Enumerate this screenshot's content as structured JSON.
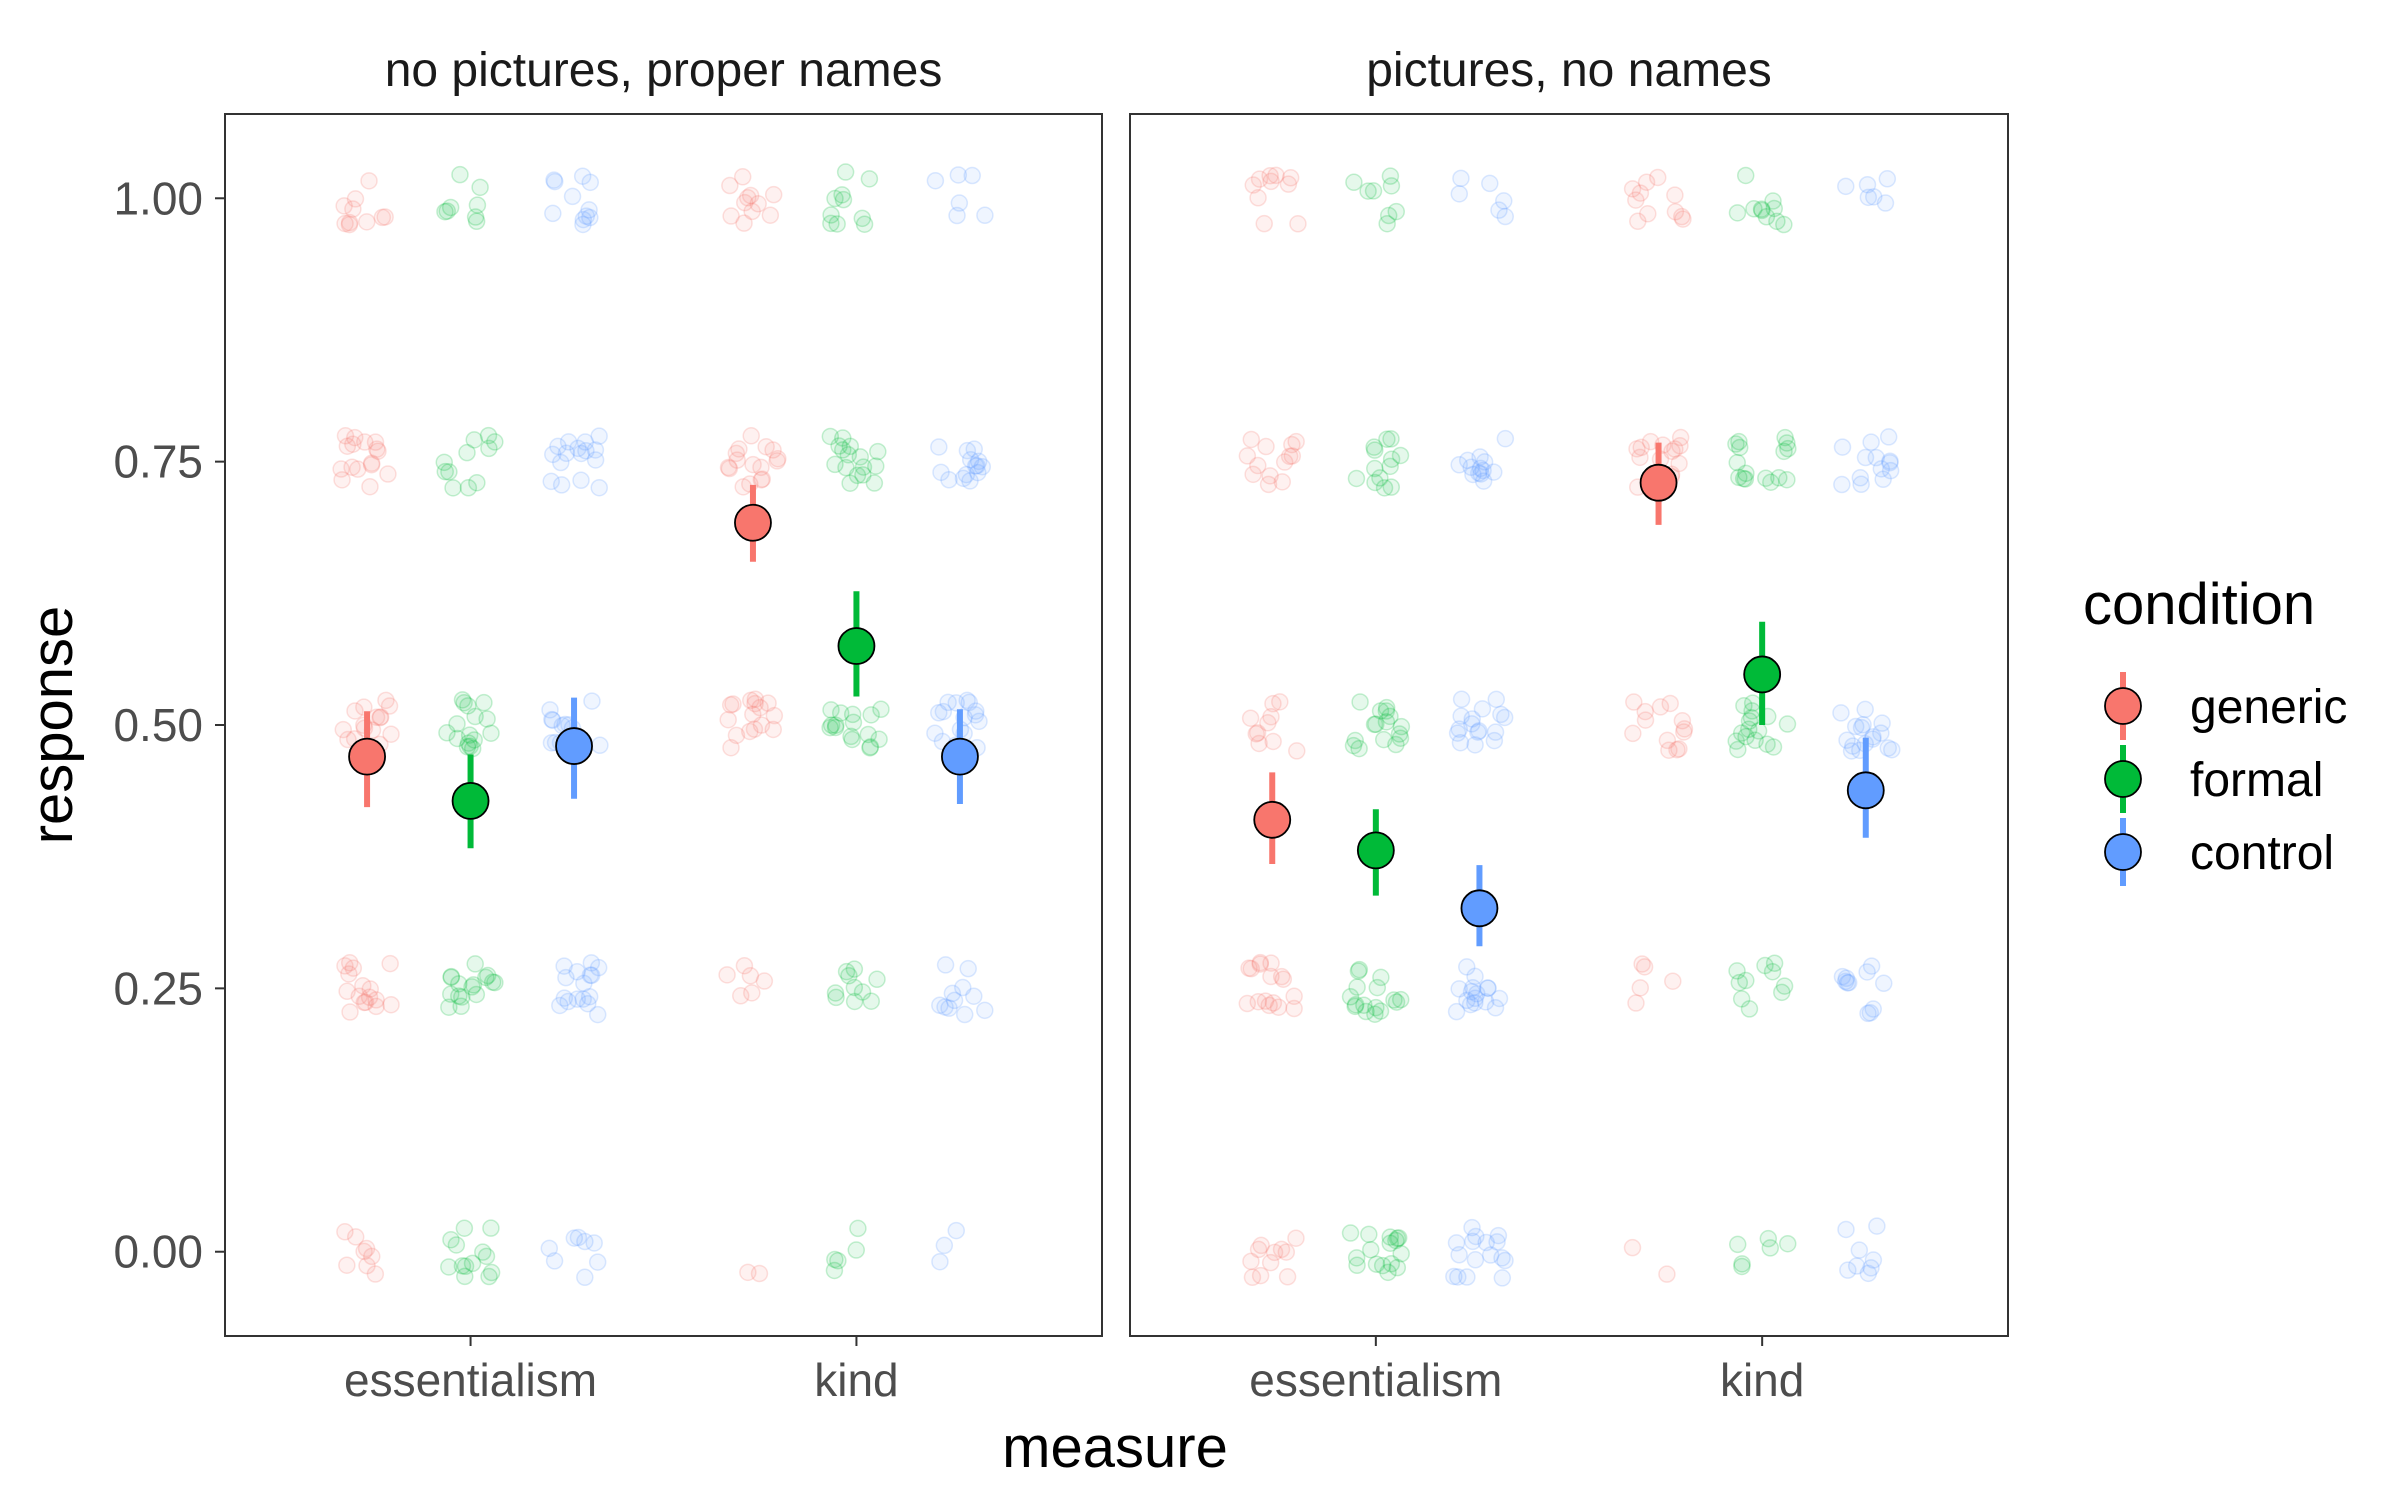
{
  "chart_data": {
    "type": "scatter",
    "xlabel": "measure",
    "ylabel": "response",
    "ylim": [
      -0.08,
      1.08
    ],
    "y_ticks": [
      "1.00",
      "0.75",
      "0.50",
      "0.25",
      "0.00"
    ],
    "y_tick_values": [
      1.0,
      0.75,
      0.5,
      0.25,
      0.0
    ],
    "categories": [
      "essentialism",
      "kind"
    ],
    "grid": false,
    "legend_position": "right",
    "legend": {
      "title": "condition",
      "entries": [
        {
          "name": "generic",
          "color": "#F8766D"
        },
        {
          "name": "formal",
          "color": "#00BA38"
        },
        {
          "name": "control",
          "color": "#619CFF"
        }
      ]
    },
    "panels": [
      {
        "title": "no pictures, proper names",
        "series": [
          {
            "name": "generic",
            "color": "#F8766D",
            "means": [
              0.47,
              0.692
            ],
            "ci_low": [
              0.422,
              0.655
            ],
            "ci_high": [
              0.513,
              0.728
            ],
            "raw_density": [
              [
                0.5,
                1.0,
                1.0,
                1.0,
                0.6
              ],
              [
                0.1,
                0.4,
                1.0,
                1.0,
                0.7
              ]
            ]
          },
          {
            "name": "formal",
            "color": "#00BA38",
            "means": [
              0.428,
              0.575
            ],
            "ci_low": [
              0.383,
              0.527
            ],
            "ci_high": [
              0.472,
              0.627
            ],
            "raw_density": [
              [
                0.8,
                1.0,
                1.0,
                0.7,
                0.5
              ],
              [
                0.3,
                0.6,
                1.0,
                1.0,
                0.6
              ]
            ]
          },
          {
            "name": "control",
            "color": "#619CFF",
            "means": [
              0.48,
              0.47
            ],
            "ci_low": [
              0.43,
              0.425
            ],
            "ci_high": [
              0.526,
              0.515
            ],
            "raw_density": [
              [
                0.5,
                1.0,
                1.0,
                1.0,
                0.7
              ],
              [
                0.2,
                0.7,
                1.0,
                0.9,
                0.4
              ]
            ]
          }
        ]
      },
      {
        "title": "pictures, no names",
        "series": [
          {
            "name": "generic",
            "color": "#F8766D",
            "means": [
              0.41,
              0.73
            ],
            "ci_low": [
              0.368,
              0.69
            ],
            "ci_high": [
              0.455,
              0.768
            ],
            "raw_density": [
              [
                0.7,
                1.0,
                0.6,
                0.8,
                0.6
              ],
              [
                0.1,
                0.3,
                0.8,
                1.0,
                0.7
              ]
            ]
          },
          {
            "name": "formal",
            "color": "#00BA38",
            "means": [
              0.381,
              0.548
            ],
            "ci_low": [
              0.338,
              0.5
            ],
            "ci_high": [
              0.42,
              0.598
            ],
            "raw_density": [
              [
                1.0,
                1.0,
                1.0,
                0.8,
                0.5
              ],
              [
                0.4,
                0.6,
                1.0,
                1.0,
                0.6
              ]
            ]
          },
          {
            "name": "control",
            "color": "#619CFF",
            "means": [
              0.326,
              0.438
            ],
            "ci_low": [
              0.29,
              0.393
            ],
            "ci_high": [
              0.367,
              0.488
            ],
            "raw_density": [
              [
                1.0,
                1.0,
                1.0,
                0.8,
                0.4
              ],
              [
                0.5,
                0.7,
                1.0,
                0.8,
                0.4
              ]
            ]
          }
        ]
      }
    ]
  }
}
